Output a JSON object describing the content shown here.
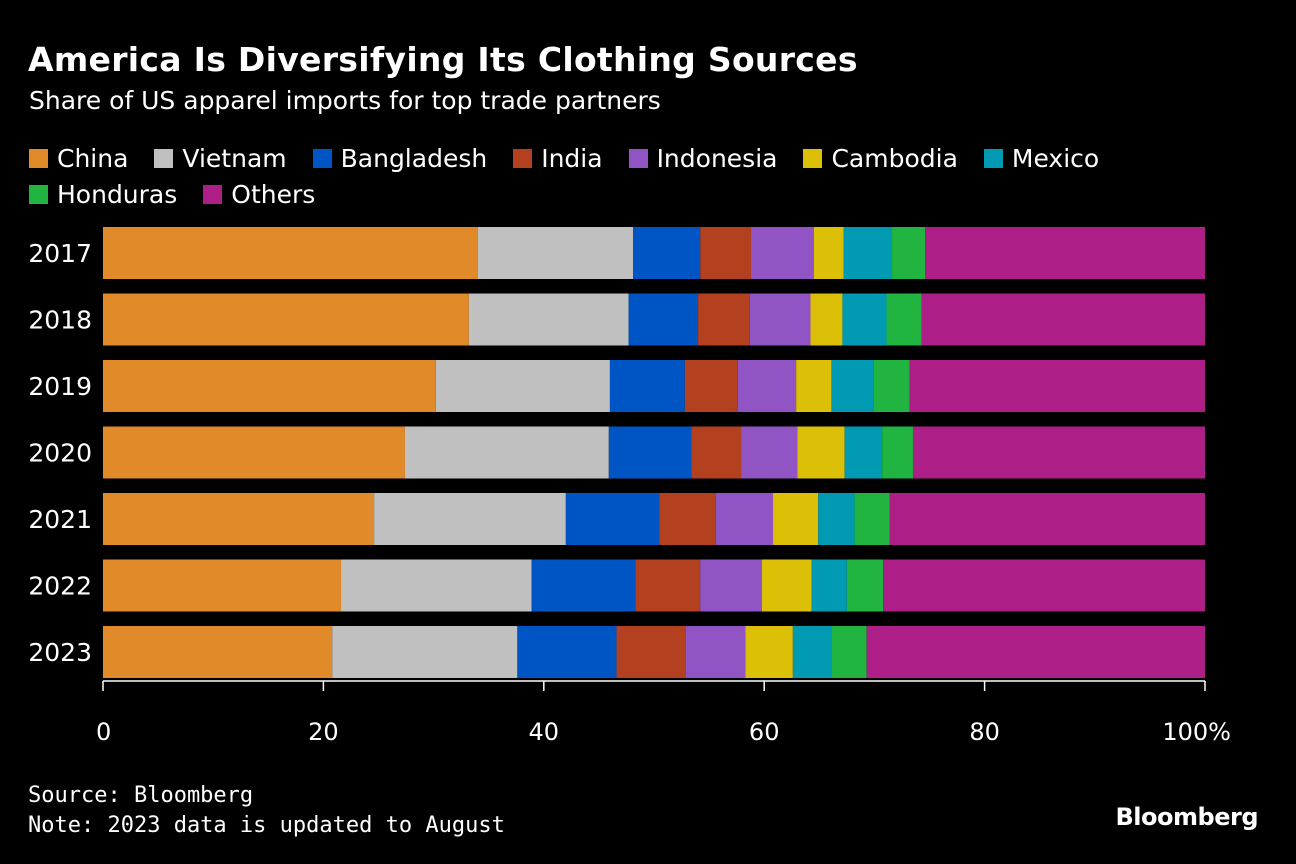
{
  "title": "America Is Diversifying Its Clothing Sources",
  "subtitle": "Share of US apparel imports for top trade partners",
  "footer": {
    "source": "Source: Bloomberg",
    "note": "Note: 2023 data is updated to August"
  },
  "brand": "Bloomberg",
  "chart_data": {
    "type": "bar",
    "orientation": "horizontal",
    "stacked": true,
    "categories": [
      "2017",
      "2018",
      "2019",
      "2020",
      "2021",
      "2022",
      "2023"
    ],
    "series": [
      {
        "name": "China",
        "color": "#e08a2a",
        "values": [
          34.0,
          33.2,
          30.2,
          27.4,
          24.6,
          21.6,
          20.8
        ]
      },
      {
        "name": "Vietnam",
        "color": "#c0c0c0",
        "values": [
          14.1,
          14.5,
          15.8,
          18.5,
          17.4,
          17.3,
          16.8
        ]
      },
      {
        "name": "Bangladesh",
        "color": "#0055c4",
        "values": [
          6.1,
          6.3,
          6.8,
          7.5,
          8.5,
          9.4,
          9.0
        ]
      },
      {
        "name": "India",
        "color": "#b3401f",
        "values": [
          4.6,
          4.7,
          4.8,
          4.5,
          5.1,
          5.9,
          6.3
        ]
      },
      {
        "name": "Indonesia",
        "color": "#9154c4",
        "values": [
          5.7,
          5.5,
          5.3,
          5.1,
          5.2,
          5.6,
          5.4
        ]
      },
      {
        "name": "Cambodia",
        "color": "#dcc008",
        "values": [
          2.7,
          2.9,
          3.2,
          4.3,
          4.1,
          4.5,
          4.3
        ]
      },
      {
        "name": "Mexico",
        "color": "#009bb2",
        "values": [
          4.4,
          4.0,
          3.8,
          3.4,
          3.3,
          3.2,
          3.5
        ]
      },
      {
        "name": "Honduras",
        "color": "#22b440",
        "values": [
          3.0,
          3.2,
          3.3,
          2.8,
          3.2,
          3.3,
          3.2
        ]
      },
      {
        "name": "Others",
        "color": "#ad1e86",
        "values": [
          25.4,
          25.7,
          26.8,
          26.5,
          28.6,
          29.2,
          30.7
        ]
      }
    ],
    "xlim": [
      0,
      100
    ],
    "xticks": [
      "0",
      "20",
      "40",
      "60",
      "80",
      "100%"
    ],
    "xtick_values": [
      0,
      20,
      40,
      60,
      80,
      100
    ],
    "legend_position": "top",
    "grid": false
  }
}
